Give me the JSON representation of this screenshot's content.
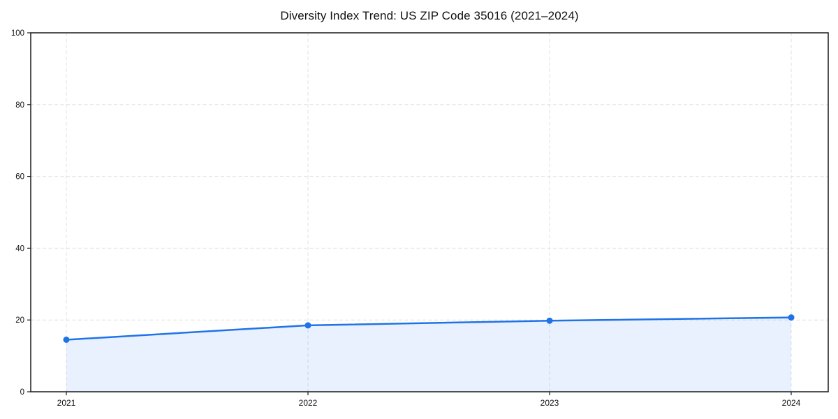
{
  "chart_data": {
    "type": "area",
    "title": "Diversity Index Trend: US ZIP Code 35016 (2021–2024)",
    "x": [
      2021,
      2022,
      2023,
      2024
    ],
    "xticks": [
      "2021",
      "2022",
      "2023",
      "2024"
    ],
    "series": [
      {
        "name": "Diversity Index",
        "values": [
          14.5,
          18.5,
          19.8,
          20.7
        ]
      }
    ],
    "xlabel": "",
    "ylabel": "",
    "ylim": [
      0,
      100
    ],
    "yticks": [
      0,
      20,
      40,
      60,
      80,
      100
    ],
    "grid": true,
    "grid_style": "dashed",
    "legend_position": "none",
    "colors": {
      "line": "#1f73e8",
      "marker": "#1f73e8",
      "fill": "rgba(31, 115, 232, 0.10)",
      "grid": "#e0e0e0",
      "axis": "#1a1a1a",
      "text": "#111111",
      "background": "#ffffff"
    }
  }
}
